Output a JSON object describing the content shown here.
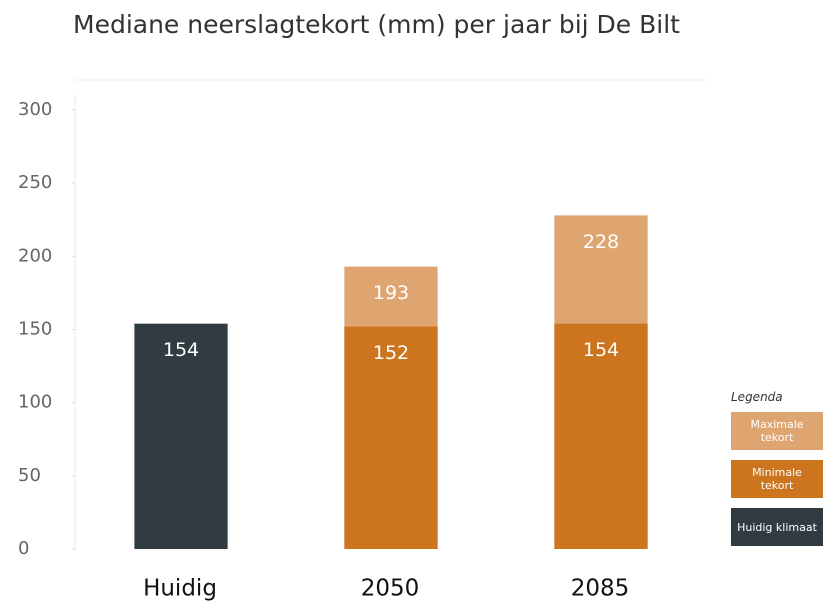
{
  "chart_data": {
    "type": "bar",
    "title": "Mediane neerslagtekort (mm) per jaar bij De Bilt",
    "categories": [
      "Huidig",
      "2050",
      "2085"
    ],
    "series": [
      {
        "name": "Maximale tekort",
        "color": "#dfa571",
        "values": [
          null,
          193,
          228
        ]
      },
      {
        "name": "Minimale tekort",
        "color": "#cc741e",
        "values": [
          null,
          152,
          154
        ]
      },
      {
        "name": "Huidig klimaat",
        "color": "#313c42",
        "values": [
          154,
          null,
          null
        ]
      }
    ],
    "legend_title": "Legenda",
    "legend_position": "right",
    "ylim": [
      0,
      300
    ],
    "yticks": [
      0,
      50,
      100,
      150,
      200,
      250,
      300
    ],
    "grid": false
  }
}
